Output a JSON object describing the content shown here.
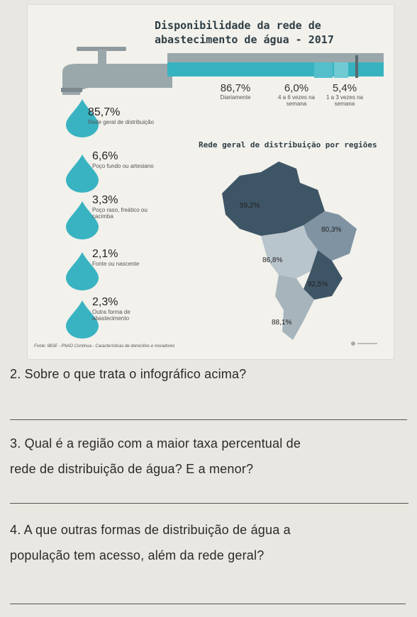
{
  "infographic": {
    "title_line1": "Disponibilidade da rede de",
    "title_line2": "abastecimento de água - 2017",
    "frequency": [
      {
        "value": "86,7%",
        "label": "Diariamente"
      },
      {
        "value": "6,0%",
        "label": "4 a 6 vezes na semana"
      },
      {
        "value": "5,4%",
        "label": "1 a 3 vezes na semana"
      }
    ],
    "sources": [
      {
        "value": "85,7%",
        "label": "Rede geral de distribuição"
      },
      {
        "value": "6,6%",
        "label": "Poço fundo ou artesiano"
      },
      {
        "value": "3,3%",
        "label": "Poço raso, freático ou cacimba"
      },
      {
        "value": "2,1%",
        "label": "Fonte ou nascente"
      },
      {
        "value": "2,3%",
        "label": "Outra forma de abastecimento"
      }
    ],
    "map_title": "Rede geral de distribuição por regiões",
    "regions": [
      {
        "value": "59,2%"
      },
      {
        "value": "80,3%"
      },
      {
        "value": "86,8%"
      },
      {
        "value": "92,5%"
      },
      {
        "value": "88,1%"
      }
    ],
    "source_note": "Fonte: IBGE - PNAD Contínua - Características de domicílios e moradores",
    "colors": {
      "teal": "#39b3c1",
      "dark": "#3e5566",
      "mid": "#7f93a3",
      "light": "#b9c5cc",
      "grey_map": "#a7b4bc"
    }
  },
  "questions": [
    {
      "text": "2. Sobre o que trata o infográfico acima?"
    },
    {
      "text_line1": "3. Qual é a região com a maior taxa percentual de",
      "text_line2": "rede de distribuição de água? E a menor?"
    },
    {
      "text_line1": "4. A que outras formas de distribuição de água a",
      "text_line2": "população tem acesso, além da rede geral?"
    }
  ]
}
